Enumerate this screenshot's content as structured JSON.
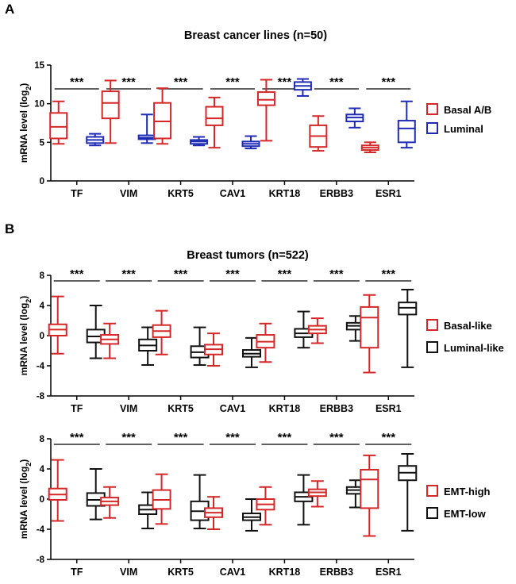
{
  "panels": [
    {
      "letter": "A"
    },
    {
      "letter": "B"
    }
  ],
  "colors": {
    "red": "#d62728",
    "blue": "#1f2bb5",
    "black": "#111111"
  },
  "chart_data": [
    {
      "type": "boxplot",
      "title": "Breast cancer lines (n=50)",
      "ylabel": "mRNA level (log2)",
      "ylim": [
        0,
        15
      ],
      "yticks": [
        0,
        5,
        10,
        15
      ],
      "categories": [
        "TF",
        "VIM",
        "KRT5",
        "CAV1",
        "KRT18",
        "ERBB3",
        "ESR1"
      ],
      "significance": [
        "***",
        "***",
        "***",
        "***",
        "***",
        "***",
        "***"
      ],
      "legend_position": "right",
      "series": [
        {
          "name": "Basal A/B",
          "color": "#d62728",
          "boxes": [
            {
              "min": 4.8,
              "q1": 5.5,
              "median": 7.0,
              "q3": 8.8,
              "max": 10.3
            },
            {
              "min": 4.9,
              "q1": 8.1,
              "median": 10.1,
              "q3": 11.6,
              "max": 13.0
            },
            {
              "min": 4.8,
              "q1": 5.5,
              "median": 7.7,
              "q3": 10.1,
              "max": 12.0
            },
            {
              "min": 4.3,
              "q1": 7.2,
              "median": 8.1,
              "q3": 9.6,
              "max": 10.8
            },
            {
              "min": 5.2,
              "q1": 9.8,
              "median": 10.5,
              "q3": 11.5,
              "max": 13.1
            },
            {
              "min": 3.9,
              "q1": 4.4,
              "median": 5.8,
              "q3": 7.2,
              "max": 8.4
            },
            {
              "min": 3.7,
              "q1": 4.0,
              "median": 4.3,
              "q3": 4.6,
              "max": 5.0
            }
          ]
        },
        {
          "name": "Luminal",
          "color": "#1f2bb5",
          "boxes": [
            {
              "min": 4.6,
              "q1": 4.9,
              "median": 5.3,
              "q3": 5.7,
              "max": 6.1
            },
            {
              "min": 4.9,
              "q1": 5.4,
              "median": 5.6,
              "q3": 5.9,
              "max": 8.6
            },
            {
              "min": 4.6,
              "q1": 4.8,
              "median": 5.1,
              "q3": 5.3,
              "max": 5.7
            },
            {
              "min": 4.2,
              "q1": 4.5,
              "median": 4.8,
              "q3": 5.1,
              "max": 5.8
            },
            {
              "min": 11.0,
              "q1": 11.8,
              "median": 12.3,
              "q3": 12.8,
              "max": 13.2
            },
            {
              "min": 6.9,
              "q1": 7.7,
              "median": 8.2,
              "q3": 8.6,
              "max": 9.4
            },
            {
              "min": 4.3,
              "q1": 5.0,
              "median": 6.8,
              "q3": 7.8,
              "max": 10.3
            }
          ]
        }
      ]
    },
    {
      "type": "boxplot",
      "title": "Breast tumors (n=522)",
      "ylabel": "mRNA level (log2)",
      "ylim": [
        -8,
        8
      ],
      "yticks": [
        -8,
        -4,
        0,
        4,
        8
      ],
      "categories": [
        "TF",
        "VIM",
        "KRT5",
        "CAV1",
        "KRT18",
        "ERBB3",
        "ESR1"
      ],
      "significance": [
        "***",
        "***",
        "***",
        "***",
        "***",
        "***",
        "***"
      ],
      "legend_position": "right",
      "series": [
        {
          "name": "Basal-like",
          "color": "#d62728",
          "boxes": [
            {
              "min": -2.4,
              "q1": 0.0,
              "median": 0.8,
              "q3": 1.5,
              "max": 5.2
            },
            {
              "min": -3.0,
              "q1": -1.1,
              "median": -0.5,
              "q3": 0.1,
              "max": 1.6
            },
            {
              "min": -2.5,
              "q1": -0.2,
              "median": 0.6,
              "q3": 1.4,
              "max": 3.3
            },
            {
              "min": -4.0,
              "q1": -2.5,
              "median": -1.8,
              "q3": -1.2,
              "max": 0.3
            },
            {
              "min": -3.5,
              "q1": -1.6,
              "median": -0.8,
              "q3": 0.1,
              "max": 1.6
            },
            {
              "min": -1.0,
              "q1": 0.3,
              "median": 0.8,
              "q3": 1.3,
              "max": 2.3
            },
            {
              "min": -4.9,
              "q1": -1.6,
              "median": 2.4,
              "q3": 3.8,
              "max": 5.4
            }
          ]
        },
        {
          "name": "Luminal-like",
          "color": "#111111",
          "boxes": [
            {
              "min": -3.0,
              "q1": -0.9,
              "median": -0.1,
              "q3": 0.8,
              "max": 4.0
            },
            {
              "min": -3.9,
              "q1": -2.0,
              "median": -1.3,
              "q3": -0.5,
              "max": 1.1
            },
            {
              "min": -3.9,
              "q1": -2.9,
              "median": -2.2,
              "q3": -1.4,
              "max": 1.1
            },
            {
              "min": -4.2,
              "q1": -2.8,
              "median": -2.4,
              "q3": -1.9,
              "max": -0.3
            },
            {
              "min": -1.6,
              "q1": -0.2,
              "median": 0.3,
              "q3": 0.9,
              "max": 3.2
            },
            {
              "min": -0.7,
              "q1": 0.8,
              "median": 1.3,
              "q3": 1.7,
              "max": 2.6
            },
            {
              "min": -4.2,
              "q1": 2.8,
              "median": 3.7,
              "q3": 4.4,
              "max": 6.1
            }
          ]
        }
      ]
    },
    {
      "type": "boxplot",
      "title": "",
      "ylabel": "mRNA level (log2)",
      "ylim": [
        -8,
        8
      ],
      "yticks": [
        -8,
        -4,
        0,
        4,
        8
      ],
      "categories": [
        "TF",
        "VIM",
        "KRT5",
        "CAV1",
        "KRT18",
        "ERBB3",
        "ESR1"
      ],
      "significance": [
        "***",
        "***",
        "***",
        "***",
        "***",
        "***",
        "***"
      ],
      "legend_position": "right",
      "series": [
        {
          "name": "EMT-high",
          "color": "#d62728",
          "boxes": [
            {
              "min": -2.9,
              "q1": -0.1,
              "median": 0.6,
              "q3": 1.4,
              "max": 5.2
            },
            {
              "min": -2.5,
              "q1": -0.8,
              "median": -0.3,
              "q3": 0.2,
              "max": 1.6
            },
            {
              "min": -3.3,
              "q1": -1.3,
              "median": -0.1,
              "q3": 1.2,
              "max": 3.3
            },
            {
              "min": -4.0,
              "q1": -2.4,
              "median": -1.8,
              "q3": -1.2,
              "max": 0.3
            },
            {
              "min": -3.4,
              "q1": -1.4,
              "median": -0.7,
              "q3": 0.0,
              "max": 1.6
            },
            {
              "min": -1.0,
              "q1": 0.4,
              "median": 0.9,
              "q3": 1.3,
              "max": 2.4
            },
            {
              "min": -4.9,
              "q1": -1.2,
              "median": 2.6,
              "q3": 3.9,
              "max": 5.8
            }
          ]
        },
        {
          "name": "EMT-low",
          "color": "#111111",
          "boxes": [
            {
              "min": -2.7,
              "q1": -0.9,
              "median": -0.1,
              "q3": 0.8,
              "max": 4.0
            },
            {
              "min": -3.9,
              "q1": -2.0,
              "median": -1.4,
              "q3": -0.8,
              "max": 0.9
            },
            {
              "min": -3.9,
              "q1": -2.8,
              "median": -1.6,
              "q3": -0.3,
              "max": 3.2
            },
            {
              "min": -4.2,
              "q1": -2.8,
              "median": -2.4,
              "q3": -1.9,
              "max": 0.0
            },
            {
              "min": -3.4,
              "q1": -0.3,
              "median": 0.3,
              "q3": 0.9,
              "max": 3.2
            },
            {
              "min": -1.1,
              "q1": 0.7,
              "median": 1.2,
              "q3": 1.6,
              "max": 2.5
            },
            {
              "min": -4.2,
              "q1": 2.5,
              "median": 3.5,
              "q3": 4.4,
              "max": 6.0
            }
          ]
        }
      ]
    }
  ]
}
